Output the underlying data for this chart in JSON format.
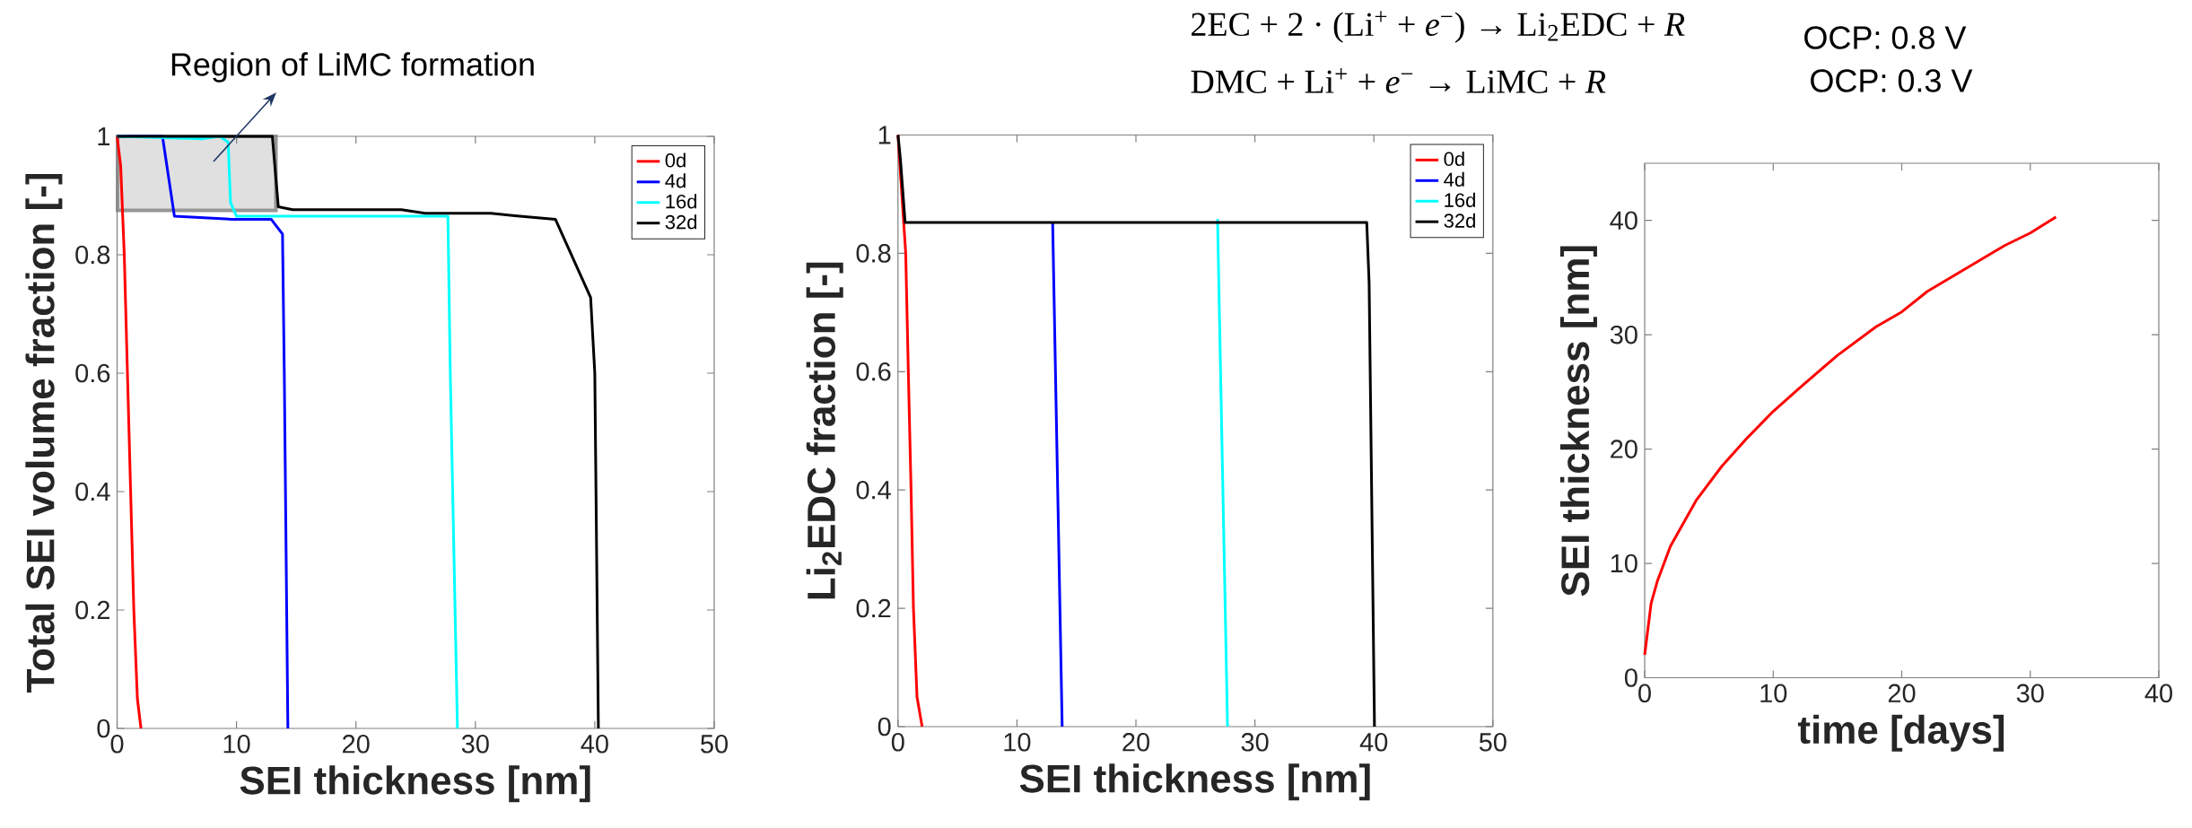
{
  "chart_data": [
    {
      "type": "line",
      "xlabel": "SEI thickness [nm]",
      "ylabel": "Total SEI volume fraction [-]",
      "xlim": [
        0,
        50
      ],
      "ylim": [
        0,
        1
      ],
      "xticks": [
        0,
        10,
        20,
        30,
        40,
        50
      ],
      "yticks": [
        0,
        0.2,
        0.4,
        0.6,
        0.8,
        1
      ],
      "legend": "top right",
      "annotations": [
        "Region of LiMC formation"
      ],
      "series": [
        {
          "name": "0d",
          "color": "#ff0000",
          "x": [
            0,
            0.3,
            0.6,
            1.0,
            1.4,
            1.7,
            2.0
          ],
          "values": [
            1,
            0.95,
            0.8,
            0.5,
            0.2,
            0.05,
            0
          ]
        },
        {
          "name": "4d",
          "color": "#0000ff",
          "x": [
            0,
            3.8,
            4.8,
            9.6,
            12.9,
            13.85,
            14.0,
            14.3
          ],
          "values": [
            1,
            1,
            0.865,
            0.86,
            0.86,
            0.835,
            0.6,
            0
          ]
        },
        {
          "name": "16d",
          "color": "#00ffff",
          "x": [
            0,
            7.2,
            8.6,
            9.3,
            9.5,
            10.0,
            27.7,
            27.9,
            28.5
          ],
          "values": [
            1,
            0.996,
            1,
            0.99,
            0.888,
            0.865,
            0.865,
            0.6,
            0
          ]
        },
        {
          "name": "32d",
          "color": "#000000",
          "x": [
            0,
            13.0,
            13.5,
            14.7,
            23.8,
            25.8,
            31.3,
            33.3,
            36.7,
            39.65,
            40.0,
            40.3
          ],
          "values": [
            1,
            1,
            0.881,
            0.876,
            0.876,
            0.87,
            0.87,
            0.866,
            0.86,
            0.728,
            0.6,
            0
          ]
        }
      ]
    },
    {
      "type": "line",
      "xlabel": "SEI thickness [nm]",
      "ylabel": "Li$_{2}$EDC fraction [-]",
      "xlim": [
        0,
        50
      ],
      "ylim": [
        0,
        1
      ],
      "xticks": [
        0,
        10,
        20,
        30,
        40,
        50
      ],
      "yticks": [
        0,
        0.2,
        0.4,
        0.6,
        0.8,
        1
      ],
      "legend": "top right",
      "series": [
        {
          "name": "0d",
          "color": "#ff0000",
          "x": [
            0,
            0.65,
            0.87,
            1.1,
            1.3,
            1.6,
            2.03
          ],
          "values": [
            1,
            0.8,
            0.6,
            0.4,
            0.2,
            0.05,
            0
          ]
        },
        {
          "name": "4d",
          "color": "#0000ff",
          "x": [
            13.0,
            13.8
          ],
          "values": [
            0.852,
            0
          ]
        },
        {
          "name": "16d",
          "color": "#00ffff",
          "x": [
            26.86,
            27.7
          ],
          "values": [
            0.858,
            0
          ]
        },
        {
          "name": "32d",
          "color": "#000000",
          "x": [
            0,
            0.2,
            0.6,
            39.4,
            39.6,
            40.05
          ],
          "values": [
            1,
            0.96,
            0.852,
            0.852,
            0.75,
            0
          ]
        }
      ]
    },
    {
      "type": "line",
      "xlabel": "time [days]",
      "ylabel": "SEI thickness [nm]",
      "xlim": [
        0,
        40
      ],
      "ylim": [
        0,
        45
      ],
      "xticks": [
        0,
        10,
        20,
        30,
        40
      ],
      "yticks": [
        0,
        10,
        20,
        30,
        40
      ],
      "annotations": [
        "2EC + 2 · (Li$^{+}$ + *e*$^{−}$) → Li$_{2}$EDC + *R*",
        "DMC + Li$^{+}$ + *e*$^{−}$ → LiMC + *R*",
        "OCP: 0.8 V",
        "OCP: 0.3 V"
      ],
      "series": [
        {
          "color": "#ff0000",
          "x": [
            0,
            0.5,
            1,
            2,
            4,
            6,
            8,
            10,
            12,
            15,
            18,
            20,
            22,
            25,
            28,
            30,
            32
          ],
          "values": [
            2.0,
            6.5,
            8.5,
            11.5,
            15.5,
            18.5,
            21.0,
            23.3,
            25.3,
            28.2,
            30.7,
            32.0,
            33.8,
            35.8,
            37.8,
            38.9,
            40.3
          ]
        }
      ]
    }
  ]
}
